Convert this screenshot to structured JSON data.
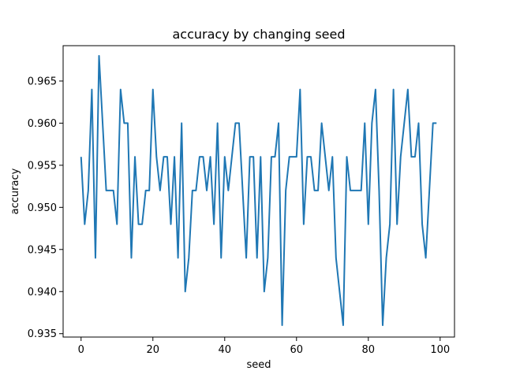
{
  "chart_data": {
    "type": "line",
    "title": "accuracy by changing seed",
    "xlabel": "seed",
    "ylabel": "accuracy",
    "xlim": [
      -5,
      104
    ],
    "ylim": [
      0.9346,
      0.9692
    ],
    "xticks": [
      0,
      20,
      40,
      60,
      80,
      100
    ],
    "yticks": [
      0.935,
      0.94,
      0.945,
      0.95,
      0.955,
      0.96,
      0.965
    ],
    "ytick_labels": [
      "0.935",
      "0.940",
      "0.945",
      "0.950",
      "0.955",
      "0.960",
      "0.965"
    ],
    "grid": false,
    "series": [
      {
        "color": "#1f77b4",
        "x": [
          0,
          1,
          2,
          3,
          4,
          5,
          6,
          7,
          8,
          9,
          10,
          11,
          12,
          13,
          14,
          15,
          16,
          17,
          18,
          19,
          20,
          21,
          22,
          23,
          24,
          25,
          26,
          27,
          28,
          29,
          30,
          31,
          32,
          33,
          34,
          35,
          36,
          37,
          38,
          39,
          40,
          41,
          42,
          43,
          44,
          45,
          46,
          47,
          48,
          49,
          50,
          51,
          52,
          53,
          54,
          55,
          56,
          57,
          58,
          59,
          60,
          61,
          62,
          63,
          64,
          65,
          66,
          67,
          68,
          69,
          70,
          71,
          72,
          73,
          74,
          75,
          76,
          77,
          78,
          79,
          80,
          81,
          82,
          83,
          84,
          85,
          86,
          87,
          88,
          89,
          90,
          91,
          92,
          93,
          94,
          95,
          96,
          97,
          98,
          99
        ],
        "y": [
          0.956,
          0.948,
          0.952,
          0.964,
          0.944,
          0.968,
          0.96,
          0.952,
          0.952,
          0.952,
          0.948,
          0.964,
          0.96,
          0.96,
          0.944,
          0.956,
          0.948,
          0.948,
          0.952,
          0.952,
          0.964,
          0.956,
          0.952,
          0.956,
          0.956,
          0.948,
          0.956,
          0.944,
          0.96,
          0.94,
          0.944,
          0.952,
          0.952,
          0.956,
          0.956,
          0.952,
          0.956,
          0.948,
          0.96,
          0.944,
          0.956,
          0.952,
          0.956,
          0.96,
          0.96,
          0.952,
          0.944,
          0.956,
          0.956,
          0.944,
          0.956,
          0.94,
          0.944,
          0.956,
          0.956,
          0.96,
          0.936,
          0.952,
          0.956,
          0.956,
          0.956,
          0.964,
          0.948,
          0.956,
          0.956,
          0.952,
          0.952,
          0.96,
          0.956,
          0.952,
          0.956,
          0.944,
          0.94,
          0.936,
          0.956,
          0.952,
          0.952,
          0.952,
          0.952,
          0.96,
          0.948,
          0.96,
          0.964,
          0.952,
          0.936,
          0.944,
          0.948,
          0.964,
          0.948,
          0.956,
          0.96,
          0.964,
          0.956,
          0.956,
          0.96,
          0.948,
          0.944,
          0.952,
          0.96,
          0.96
        ]
      }
    ]
  }
}
